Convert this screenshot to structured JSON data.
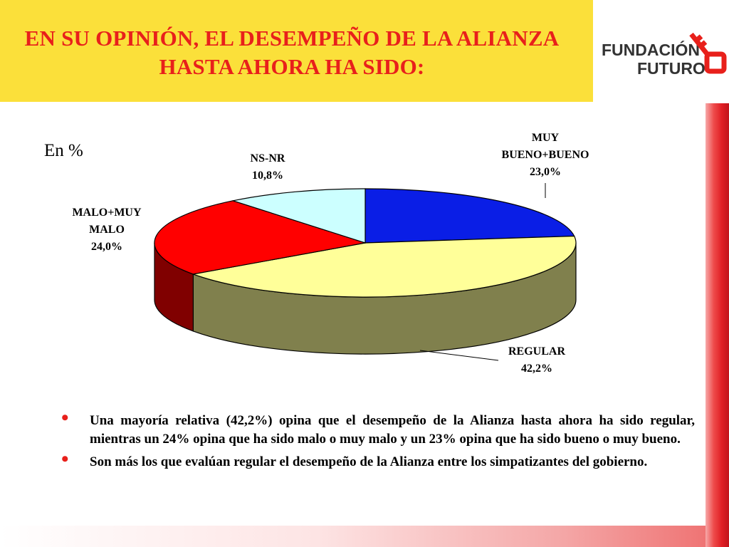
{
  "title": "EN SU OPINIÓN, EL DESEMPEÑO DE LA ALIANZA HASTA AHORA HA SIDO:",
  "logo": {
    "line1": "FUNDACIÓN",
    "line2": "FUTURO",
    "icon": "key-icon",
    "color": "#e8201b"
  },
  "chart_data": {
    "type": "pie",
    "unit_label": "En %",
    "slices": [
      {
        "label_lines": [
          "MUY",
          "BUENO+BUENO"
        ],
        "value_label": "23,0%",
        "value": 23.0,
        "color": "#0a1ee6"
      },
      {
        "label_lines": [
          "REGULAR"
        ],
        "value_label": "42,2%",
        "value": 42.2,
        "color": "#ffff99"
      },
      {
        "label_lines": [
          "MALO+MUY",
          "MALO"
        ],
        "value_label": "24,0%",
        "value": 24.0,
        "color": "#ff0000"
      },
      {
        "label_lines": [
          "NS-NR"
        ],
        "value_label": "10,8%",
        "value": 10.8,
        "color": "#ccffff"
      }
    ]
  },
  "bullets": [
    "Una mayoría relativa (42,2%) opina que el desempeño de la Alianza hasta ahora ha sido regular, mientras un 24% opina que ha sido malo o muy malo y un 23% opina que ha sido bueno o muy bueno.",
    "Son más los que evalúan regular el desempeño de la Alianza entre los simpatizantes del gobierno."
  ]
}
